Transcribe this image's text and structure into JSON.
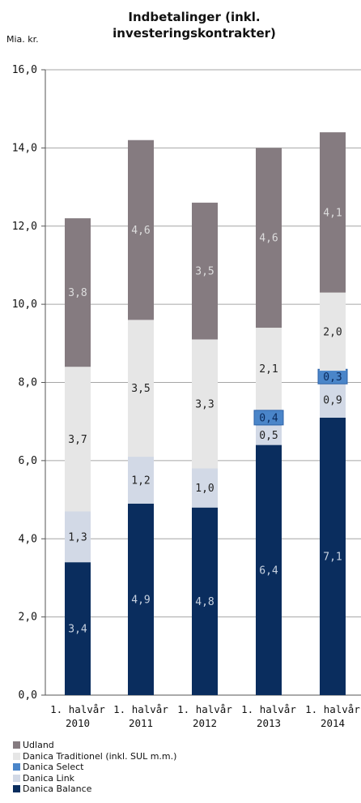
{
  "chart_data": {
    "type": "bar",
    "stacked": true,
    "title_lines": [
      "Indbetalinger (inkl.",
      "investeringskontrakter)"
    ],
    "ylabel": "Mia. kr.",
    "ylim": [
      0,
      16
    ],
    "yticks": [
      "0,0",
      "2,0",
      "4,0",
      "6,0",
      "8,0",
      "10,0",
      "12,0",
      "14,0",
      "16,0"
    ],
    "grid": true,
    "legend_position": "bottom-left",
    "categories": [
      [
        "1. halvår",
        "2010"
      ],
      [
        "1. halvår",
        "2011"
      ],
      [
        "1. halvår",
        "2012"
      ],
      [
        "1. halvår",
        "2013"
      ],
      [
        "1. halvår",
        "2014"
      ]
    ],
    "series": [
      {
        "name": "Danica Balance",
        "color": "#0a2d5e",
        "label_color": "#c8d2e0",
        "values": [
          3.4,
          4.9,
          4.8,
          6.4,
          7.1
        ],
        "labels": [
          "3,4",
          "4,9",
          "4,8",
          "6,4",
          "7,1"
        ]
      },
      {
        "name": "Danica Link",
        "color": "#d2d9e6",
        "label_color": "#222222",
        "values": [
          1.3,
          1.2,
          1.0,
          0.5,
          0.9
        ],
        "labels": [
          "1,3",
          "1,2",
          "1,0",
          "0,5",
          "0,9"
        ]
      },
      {
        "name": "Danica Select",
        "color": "#4a85c9",
        "label_color": "#0a2a5c",
        "values": [
          0,
          0,
          0,
          0.4,
          0.3
        ],
        "labels": [
          "",
          "",
          "",
          "0,4",
          "0,3"
        ]
      },
      {
        "name": "Danica Traditionel (inkl. SUL m.m.)",
        "color": "#e6e6e6",
        "label_color": "#222222",
        "values": [
          3.7,
          3.5,
          3.3,
          2.1,
          2.0
        ],
        "labels": [
          "3,7",
          "3,5",
          "3,3",
          "2,1",
          "2,0"
        ]
      },
      {
        "name": "Udland",
        "color": "#857b80",
        "label_color": "#dddddd",
        "values": [
          3.8,
          4.6,
          3.5,
          4.6,
          4.1
        ],
        "labels": [
          "3,8",
          "4,6",
          "3,5",
          "4,6",
          "4,1"
        ]
      }
    ],
    "legend_order": [
      "Udland",
      "Danica Traditionel (inkl. SUL m.m.)",
      "Danica Select",
      "Danica Link",
      "Danica Balance"
    ]
  }
}
